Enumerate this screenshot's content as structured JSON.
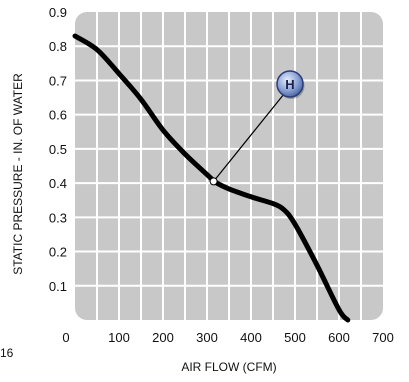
{
  "chart_data": {
    "type": "line",
    "title": "",
    "xlabel": "AIR FLOW (CFM)",
    "ylabel": "STATIC PRESSURE - IN. OF WATER",
    "xlim": [
      0,
      700
    ],
    "ylim": [
      0,
      0.9
    ],
    "x_ticks": [
      "0",
      "100",
      "200",
      "300",
      "400",
      "500",
      "600",
      "700"
    ],
    "y_ticks": [
      "0.1",
      "0.2",
      "0.3",
      "0.4",
      "0.5",
      "0.6",
      "0.7",
      "0.8",
      "0.9"
    ],
    "grid": true,
    "series": [
      {
        "x": [
          0,
          50,
          100,
          150,
          200,
          250,
          300,
          320,
          350,
          400,
          450,
          475,
          500,
          550,
          600,
          620
        ],
        "y": [
          0.83,
          0.79,
          0.72,
          0.645,
          0.555,
          0.485,
          0.425,
          0.402,
          0.383,
          0.36,
          0.34,
          0.322,
          0.28,
          0.16,
          0.03,
          0.0
        ]
      }
    ],
    "annotations": [
      {
        "label": "H",
        "point": {
          "x": 315,
          "y": 0.405
        }
      }
    ],
    "colors": {
      "plot_bg": "#c8c8c8",
      "grid": "#ffffff",
      "line": "#000000",
      "marker_fill": "#7d96c7",
      "marker_stroke": "#2a3d78"
    }
  },
  "stray_label": "16"
}
